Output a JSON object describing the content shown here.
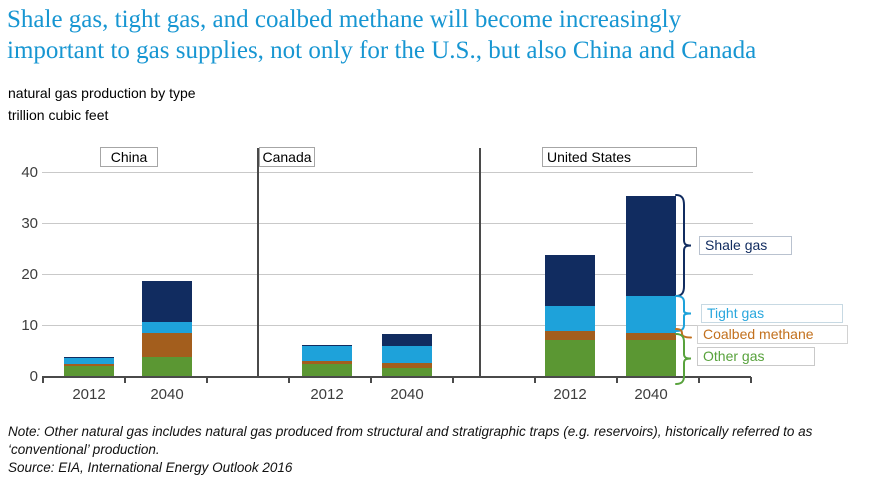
{
  "title": {
    "line1": "Shale gas, tight gas, and coalbed methane will become increasingly",
    "line2": "important to gas supplies, not only for the U.S., but also China and Canada"
  },
  "subtitle": "natural gas production by type",
  "units": "trillion cubic feet",
  "notes": {
    "note_line1": "Note: Other natural gas includes natural gas produced from structural and stratigraphic traps (e.g. reservoirs), historically referred to as",
    "note_line2": "‘conventional’ production.",
    "source": "Source:  EIA, International Energy Outlook 2016"
  },
  "colors": {
    "title": "#1796d2",
    "shale": "#112c60",
    "tight": "#1ea2da",
    "coalbed": "#a35e1d",
    "other": "#5b9733",
    "tight-text": "#2aa7dd",
    "coalbed-text": "#c2701d",
    "other-text": "#58a23c",
    "grid": "#c9c9c9",
    "axis": "#4a4a4a"
  },
  "chart_data": {
    "type": "bar",
    "stacked": true,
    "title": "natural gas production by type",
    "ylabel": "trillion cubic feet",
    "ylim": [
      0,
      40
    ],
    "yticks": [
      0,
      10,
      20,
      30,
      40
    ],
    "grid": true,
    "panels": [
      "China",
      "Canada",
      "United States"
    ],
    "categories": [
      "China 2012",
      "China 2040",
      "Canada 2012",
      "Canada 2040",
      "United States 2012",
      "United States 2040"
    ],
    "x_tick_labels": [
      "2012",
      "2040",
      "2012",
      "2040",
      "2012",
      "2040"
    ],
    "series": [
      {
        "name": "Other gas",
        "color": "#5b9733",
        "values": [
          2.1,
          3.8,
          2.4,
          1.6,
          7.2,
          7.2
        ]
      },
      {
        "name": "Coalbed methane",
        "color": "#a35e1d",
        "values": [
          0.4,
          4.8,
          0.6,
          1.0,
          1.8,
          1.3
        ]
      },
      {
        "name": "Tight gas",
        "color": "#1ea2da",
        "values": [
          1.2,
          2.1,
          3.0,
          3.3,
          4.8,
          7.3
        ]
      },
      {
        "name": "Shale gas",
        "color": "#112c60",
        "values": [
          0.2,
          8.0,
          0.2,
          2.5,
          10.0,
          19.5
        ]
      }
    ],
    "totals": [
      3.9,
      18.7,
      6.2,
      8.4,
      23.8,
      35.3
    ],
    "legend": [
      {
        "label": "Shale gas"
      },
      {
        "label": "Tight gas"
      },
      {
        "label": "Coalbed methane"
      },
      {
        "label": "Other gas"
      }
    ],
    "legend_position": "right"
  }
}
